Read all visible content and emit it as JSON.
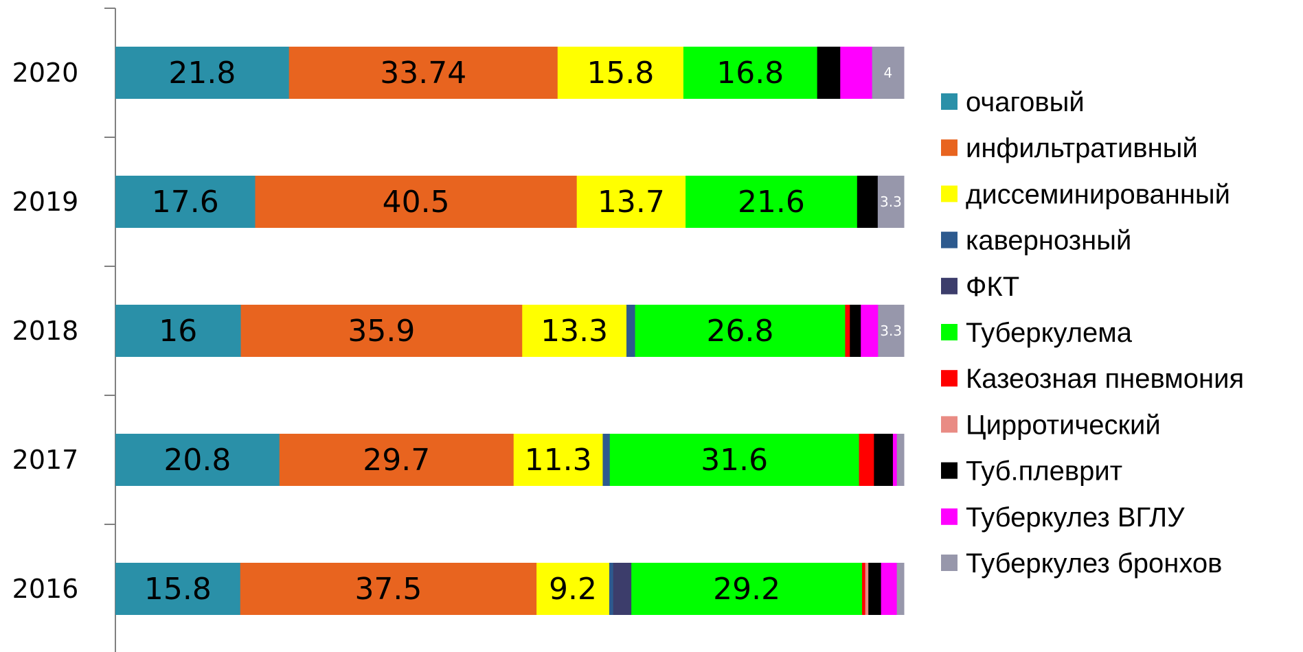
{
  "chart_data": {
    "type": "bar",
    "orientation": "horizontal",
    "stacked": true,
    "categories": [
      "2020",
      "2019",
      "2018",
      "2017",
      "2016"
    ],
    "series": [
      {
        "name": "очаговый",
        "color": "#2a90a8",
        "values": [
          21.8,
          17.6,
          16,
          20.8,
          15.8
        ],
        "labels": [
          "21.8",
          "17.6",
          "16",
          "20.8",
          "15.8"
        ]
      },
      {
        "name": "инфильтративный",
        "color": "#e8641f",
        "values": [
          33.74,
          40.5,
          35.9,
          29.7,
          37.5
        ],
        "labels": [
          "33.74",
          "40.5",
          "35.9",
          "29.7",
          "37.5"
        ]
      },
      {
        "name": "диссеминированный",
        "color": "#ffff00",
        "values": [
          15.8,
          13.7,
          13.3,
          11.3,
          9.2
        ],
        "labels": [
          "15.8",
          "13.7",
          "13.3",
          "11.3",
          "9.2"
        ]
      },
      {
        "name": "кавернозный",
        "color": "#2d5a8e",
        "values": [
          0,
          0,
          1.1,
          0.9,
          0.5
        ],
        "labels": [
          "",
          "",
          "",
          "",
          ""
        ]
      },
      {
        "name": "ФКТ",
        "color": "#3c3d6b",
        "values": [
          0,
          0,
          0,
          0,
          2.3
        ],
        "labels": [
          "",
          "",
          "",
          "",
          ""
        ]
      },
      {
        "name": "Туберкулема",
        "color": "#00ff00",
        "values": [
          16.8,
          21.6,
          26.8,
          31.6,
          29.2
        ],
        "labels": [
          "16.8",
          "21.6",
          "26.8",
          "31.6",
          "29.2"
        ]
      },
      {
        "name": "Казеозная пневмония",
        "color": "#ff0000",
        "values": [
          0,
          0,
          0.6,
          1.9,
          0.4
        ],
        "labels": [
          "",
          "",
          "",
          "",
          ""
        ]
      },
      {
        "name": "Цирротический",
        "color": "#e98b84",
        "values": [
          0,
          0,
          0,
          0,
          0.4
        ],
        "labels": [
          "",
          "",
          "",
          "",
          ""
        ]
      },
      {
        "name": "Туб.плеврит",
        "color": "#000000",
        "values": [
          2.9,
          2.6,
          1.4,
          2.4,
          1.6
        ],
        "labels": [
          "",
          "",
          "",
          "",
          ""
        ]
      },
      {
        "name": "Туберкулез ВГЛУ",
        "color": "#ff00ff",
        "values": [
          4,
          0,
          2.2,
          0.5,
          2.0
        ],
        "labels": [
          "",
          "",
          "",
          "",
          ""
        ]
      },
      {
        "name": "Туберкулез бронхов",
        "color": "#9797ab",
        "values": [
          4,
          3.3,
          3.3,
          0.9,
          0.9
        ],
        "labels": [
          "4",
          "3.3",
          "3.3",
          "",
          ""
        ]
      }
    ],
    "xlim": [
      0,
      100
    ],
    "legend_position": "right",
    "grid": false
  }
}
